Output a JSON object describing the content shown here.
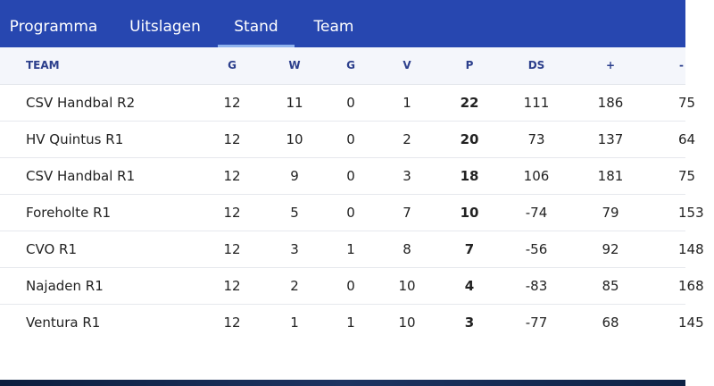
{
  "tabs": [
    {
      "label": "Programma",
      "active": false
    },
    {
      "label": "Uitslagen",
      "active": false
    },
    {
      "label": "Stand",
      "active": true
    },
    {
      "label": "Team",
      "active": false
    }
  ],
  "colors": {
    "tab_bar": "#2747b0",
    "active_tab_indicator": "#8fb3ee",
    "header_text": "#2c3f8c"
  },
  "standings": {
    "columns": [
      "TEAM",
      "G",
      "W",
      "G",
      "V",
      "P",
      "DS",
      "+",
      "-"
    ],
    "rows": [
      {
        "team": "CSV Handbal R2",
        "g": "12",
        "w": "11",
        "d": "0",
        "v": "1",
        "p": "22",
        "ds": "111",
        "plus": "186",
        "minus": "75"
      },
      {
        "team": "HV Quintus R1",
        "g": "12",
        "w": "10",
        "d": "0",
        "v": "2",
        "p": "20",
        "ds": "73",
        "plus": "137",
        "minus": "64"
      },
      {
        "team": "CSV Handbal R1",
        "g": "12",
        "w": "9",
        "d": "0",
        "v": "3",
        "p": "18",
        "ds": "106",
        "plus": "181",
        "minus": "75"
      },
      {
        "team": "Foreholte R1",
        "g": "12",
        "w": "5",
        "d": "0",
        "v": "7",
        "p": "10",
        "ds": "-74",
        "plus": "79",
        "minus": "153"
      },
      {
        "team": "CVO R1",
        "g": "12",
        "w": "3",
        "d": "1",
        "v": "8",
        "p": "7",
        "ds": "-56",
        "plus": "92",
        "minus": "148"
      },
      {
        "team": "Najaden R1",
        "g": "12",
        "w": "2",
        "d": "0",
        "v": "10",
        "p": "4",
        "ds": "-83",
        "plus": "85",
        "minus": "168"
      },
      {
        "team": "Ventura R1",
        "g": "12",
        "w": "1",
        "d": "1",
        "v": "10",
        "p": "3",
        "ds": "-77",
        "plus": "68",
        "minus": "145"
      }
    ]
  }
}
